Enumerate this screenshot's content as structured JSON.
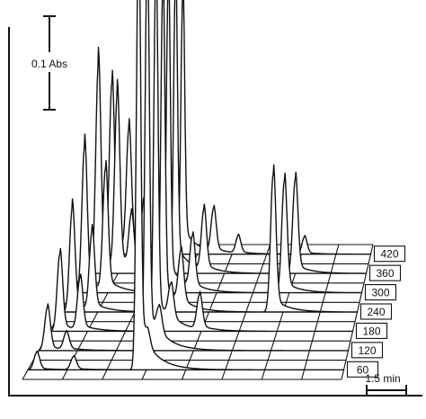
{
  "chart_data": {
    "type": "line",
    "subtype": "3d-waterfall-chromatogram",
    "title": "",
    "xlabel": "",
    "ylabel": "",
    "absorbance_scale_bar": {
      "value": 0.1,
      "label": "0.1 Abs"
    },
    "time_scale_bar": {
      "value": 1.5,
      "label": "1.5 min"
    },
    "series_labels": [
      "60",
      "120",
      "180",
      "240",
      "300",
      "360",
      "420"
    ],
    "series": [
      {
        "name": "60",
        "peaks": [
          {
            "t": 0.5,
            "h": 0.02
          },
          {
            "t": 2.6,
            "h": 0.015
          },
          {
            "t": 6.3,
            "h": 0.5
          },
          {
            "t": 6.8,
            "h": 0.02
          }
        ]
      },
      {
        "name": "120",
        "peaks": [
          {
            "t": 0.5,
            "h": 0.05
          },
          {
            "t": 1.6,
            "h": 0.02
          },
          {
            "t": 6.3,
            "h": 0.46
          },
          {
            "t": 7.0,
            "h": 0.03
          }
        ]
      },
      {
        "name": "180",
        "peaks": [
          {
            "t": 0.6,
            "h": 0.09
          },
          {
            "t": 1.8,
            "h": 0.06
          },
          {
            "t": 6.3,
            "h": 0.42
          },
          {
            "t": 7.2,
            "h": 0.04
          },
          {
            "t": 8.9,
            "h": 0.04
          }
        ]
      },
      {
        "name": "240",
        "peaks": [
          {
            "t": 0.7,
            "h": 0.12
          },
          {
            "t": 1.9,
            "h": 0.09
          },
          {
            "t": 6.2,
            "h": 0.38
          },
          {
            "t": 7.3,
            "h": 0.06
          },
          {
            "t": 12.9,
            "h": 0.16
          }
        ]
      },
      {
        "name": "300",
        "peaks": [
          {
            "t": 0.8,
            "h": 0.17
          },
          {
            "t": 2.1,
            "h": 0.14
          },
          {
            "t": 6.0,
            "h": 0.36
          },
          {
            "t": 7.5,
            "h": 0.06
          },
          {
            "t": 13.2,
            "h": 0.13
          }
        ]
      },
      {
        "name": "360",
        "peaks": [
          {
            "t": 1.0,
            "h": 0.24
          },
          {
            "t": 2.2,
            "h": 0.2
          },
          {
            "t": 3.1,
            "h": 0.06
          },
          {
            "t": 5.9,
            "h": 0.34
          },
          {
            "t": 7.7,
            "h": 0.07
          },
          {
            "t": 13.5,
            "h": 0.11
          }
        ]
      },
      {
        "name": "420",
        "peaks": [
          {
            "t": 1.2,
            "h": 0.2
          },
          {
            "t": 2.3,
            "h": 0.14
          },
          {
            "t": 3.3,
            "h": 0.06
          },
          {
            "t": 4.6,
            "h": 0.03
          },
          {
            "t": 5.8,
            "h": 0.3
          },
          {
            "t": 7.8,
            "h": 0.05
          },
          {
            "t": 9.4,
            "h": 0.02
          },
          {
            "t": 13.7,
            "h": 0.02
          }
        ]
      }
    ],
    "time_range_min": [
      0,
      18
    ],
    "grid": true,
    "legend": "none"
  }
}
